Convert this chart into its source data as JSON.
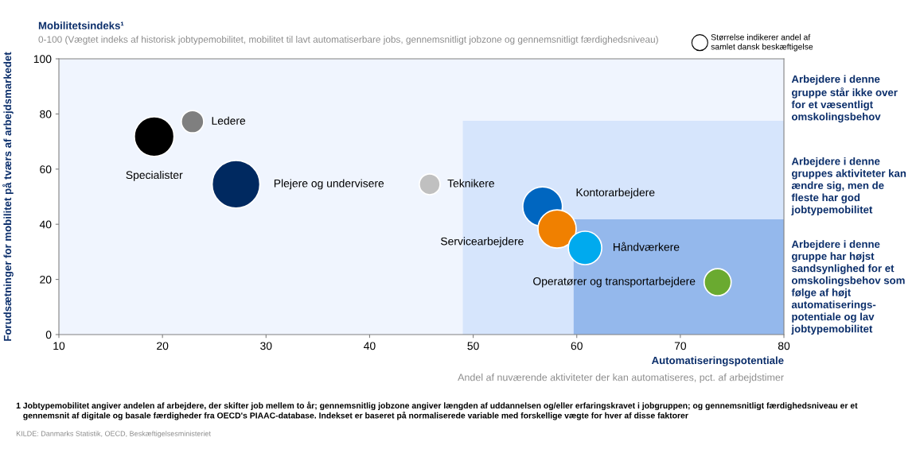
{
  "chart_data": {
    "type": "bubble",
    "title": "Mobilitetsindeks¹",
    "subtitle": "0-100 (Vægtet indeks af historisk jobtypemobilitet, mobilitet til lavt automatiserbare jobs, gennemsnitligt jobzone og gennemsnitligt færdighedsniveau)",
    "xlabel": "Automatiseringspotentiale",
    "ylabel": "Forudsætninger for mobilitet på tværs af arbejdsmarkedet",
    "xlim": [
      10,
      80
    ],
    "xticks": [
      10,
      20,
      30,
      40,
      50,
      60,
      70,
      80
    ],
    "ylim": [
      0,
      100
    ],
    "yticks": [
      0,
      20,
      40,
      60,
      80,
      100
    ],
    "grid": false,
    "legend": false,
    "series": [
      {
        "name": "Specialister",
        "color": "#000000",
        "x": [
          19.2
        ],
        "values": [
          71.8
        ],
        "sizes": [
          0.69
        ]
      },
      {
        "name": "Ledere",
        "color": "#7f7f7f",
        "x": [
          22.9
        ],
        "values": [
          77.2
        ],
        "sizes": [
          0.22
        ]
      },
      {
        "name": "Plejere og undervisere",
        "color": "#002960",
        "x": [
          27.1
        ],
        "values": [
          54.5
        ],
        "sizes": [
          1
        ]
      },
      {
        "name": "Teknikere",
        "color": "#c0c0c0",
        "x": [
          45.8
        ],
        "values": [
          54.5
        ],
        "sizes": [
          0.19
        ]
      },
      {
        "name": "Kontorarbejdere",
        "color": "#0066c0",
        "x": [
          56.7
        ],
        "values": [
          46.4
        ],
        "sizes": [
          0.69
        ]
      },
      {
        "name": "Servicearbejdere",
        "color": "#f08000",
        "x": [
          58.1
        ],
        "values": [
          38.3
        ],
        "sizes": [
          0.64
        ]
      },
      {
        "name": "Håndværkere",
        "color": "#00aaee",
        "x": [
          60.8
        ],
        "values": [
          31.4
        ],
        "sizes": [
          0.49
        ]
      },
      {
        "name": "Operatører og transportarbejdere",
        "color": "#6aaa30",
        "x": [
          73.6
        ],
        "values": [
          19.0
        ],
        "sizes": [
          0.32
        ]
      }
    ],
    "bands": [
      {
        "axis": "x",
        "from": 49,
        "to": 80,
        "color": "#d6e5fc"
      },
      {
        "axis": "x",
        "from": 59.7,
        "to": 80,
        "color": "#94b8ec"
      }
    ],
    "annotations": [
      "Størrelse indikerer andel af\nsamlet dansk beskæftigelse",
      "Andel af nuværende aktiviteter der kan automatiseres, pct. af arbejdstimer",
      "Arbejdere i denne\ngruppe står ikke over\nfor et væsentligt\nomskolingsbehov",
      "Arbejdere i denne\ngruppes aktiviteter kan\nændre sig, men de\nfleste har god\njobtypemobilitet",
      "Arbejdere i denne\ngruppe har højst\nsandsynlighed for et\nomskolingsbehov som\nfølge af højt\nautomatiserings-\npotentiale og lav\njobtypemobilitet",
      "1 Jobtypemobilitet angiver andelen af arbejdere, der skifter job mellem to år; gennemsnitlig jobzone angiver længden af uddannelsen og/eller erfaringskravet i jobgruppen; og gennemsnitligt færdighedsniveau er et\n   gennemsnit af digitale og basale færdigheder fra OECD's PIAAC-database. Indekset er baseret på normaliserede variable med forskellige vægte for hver af disse faktorer",
      "KILDE: Danmarks Statistik, OECD, Beskæftigelsesministeriet"
    ]
  }
}
